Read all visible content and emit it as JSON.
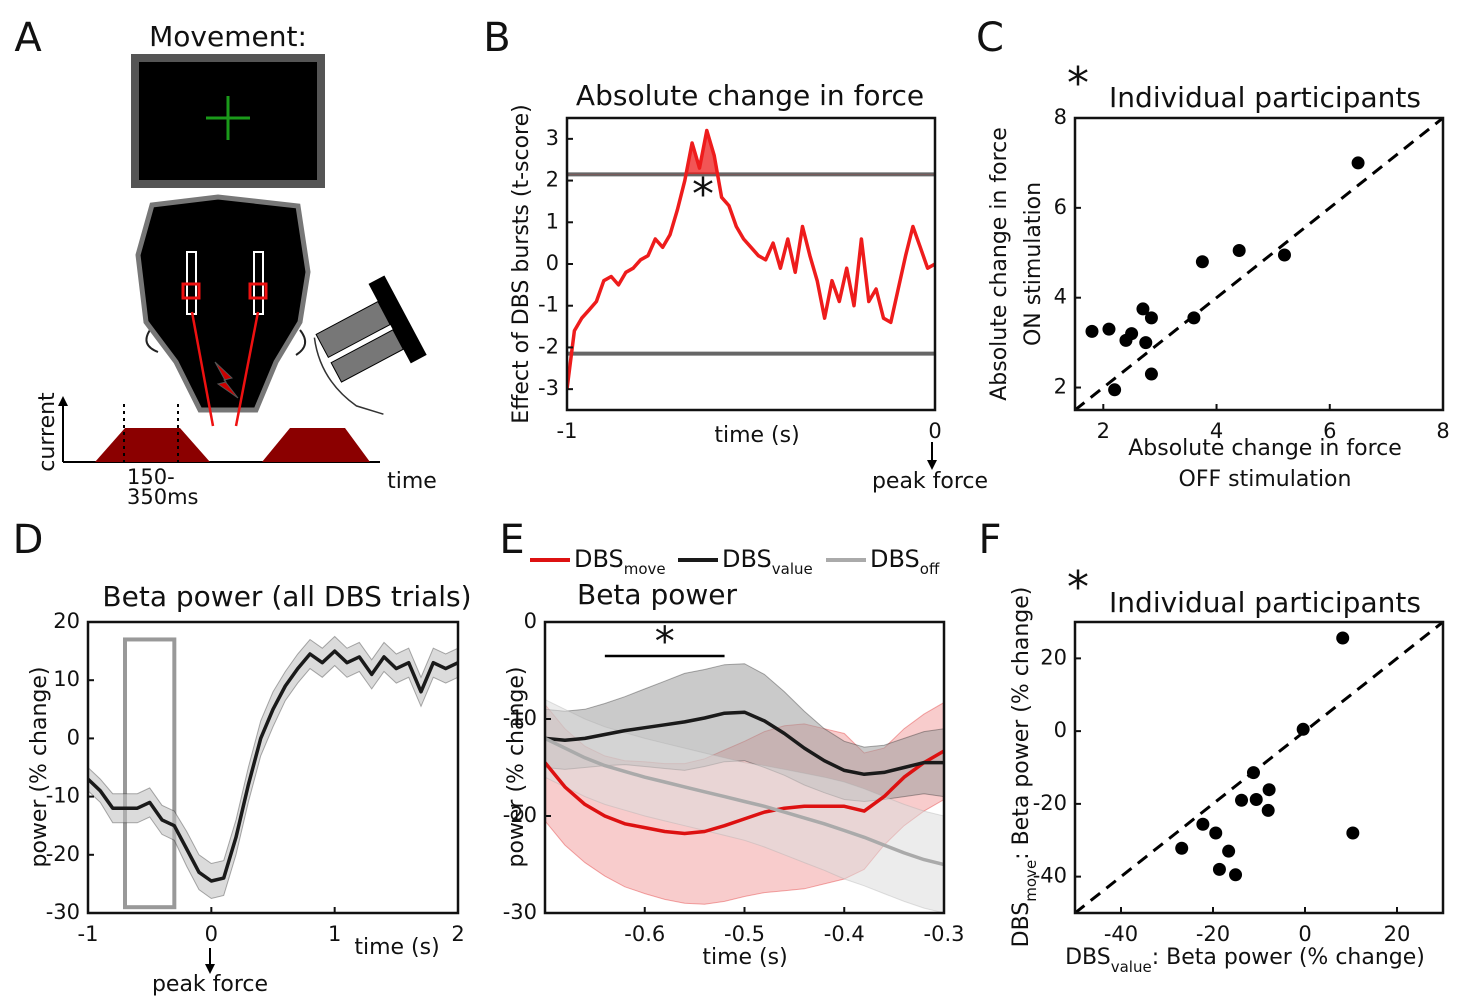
{
  "panel_labels": [
    "A",
    "B",
    "C",
    "D",
    "E",
    "F"
  ],
  "diagram": {
    "title": "Movement:",
    "y_axis_label": "current",
    "x_axis_label": "time",
    "interval": [
      "150-",
      "350ms"
    ]
  },
  "chart_data": [
    {
      "type": "line",
      "title": "Absolute change in force",
      "ylabel": "Effect of DBS bursts (t-score)",
      "xlabel": "time (s)",
      "annotation": "*",
      "x_annotation": "peak force",
      "xlim": [
        -1,
        0
      ],
      "ylim": [
        -3.5,
        3.5
      ],
      "xticks": [
        -1,
        0
      ],
      "yticks": [
        -3,
        -2,
        -1,
        0,
        1,
        2,
        3
      ],
      "thresholds": [
        2.15,
        -2.15
      ],
      "threshold_color": "#666666",
      "fill_above_threshold": true,
      "x": [
        -1.0,
        -0.98,
        -0.96,
        -0.94,
        -0.92,
        -0.9,
        -0.88,
        -0.86,
        -0.84,
        -0.82,
        -0.8,
        -0.78,
        -0.76,
        -0.74,
        -0.72,
        -0.7,
        -0.68,
        -0.66,
        -0.64,
        -0.62,
        -0.6,
        -0.58,
        -0.56,
        -0.54,
        -0.52,
        -0.5,
        -0.48,
        -0.46,
        -0.44,
        -0.42,
        -0.4,
        -0.38,
        -0.36,
        -0.34,
        -0.32,
        -0.3,
        -0.28,
        -0.26,
        -0.24,
        -0.22,
        -0.2,
        -0.18,
        -0.16,
        -0.14,
        -0.12,
        -0.1,
        -0.08,
        -0.06,
        -0.04,
        -0.02,
        0.0
      ],
      "series": [
        {
          "color": "#ee1c1c",
          "values": [
            -3.0,
            -1.6,
            -1.3,
            -1.1,
            -0.9,
            -0.4,
            -0.3,
            -0.5,
            -0.2,
            -0.1,
            0.1,
            0.2,
            0.6,
            0.4,
            0.7,
            1.3,
            2.0,
            2.9,
            2.3,
            3.2,
            2.6,
            1.6,
            1.4,
            0.9,
            0.6,
            0.4,
            0.2,
            0.1,
            0.5,
            -0.1,
            0.6,
            -0.2,
            0.9,
            0.2,
            -0.4,
            -1.3,
            -0.4,
            -0.9,
            -0.1,
            -1.0,
            0.6,
            -0.9,
            -0.6,
            -1.3,
            -1.4,
            -0.6,
            0.2,
            0.9,
            0.4,
            -0.1,
            0.0
          ]
        }
      ]
    },
    {
      "type": "scatter",
      "title": "Individual participants",
      "annotation": "*",
      "xlabel": [
        "Absolute change in force",
        "OFF stimulation"
      ],
      "ylabel": [
        "Absolute change in force",
        "ON stimulation"
      ],
      "xlim": [
        1.5,
        8
      ],
      "ylim": [
        1.5,
        8
      ],
      "xticks": [
        2,
        4,
        6,
        8
      ],
      "yticks": [
        2,
        4,
        6,
        8
      ],
      "identity_line": true,
      "color": "#000000",
      "x": [
        1.8,
        2.1,
        2.2,
        2.4,
        2.5,
        2.7,
        2.75,
        2.85,
        2.85,
        3.6,
        3.75,
        4.4,
        5.2,
        6.5
      ],
      "y": [
        3.25,
        3.3,
        1.95,
        3.05,
        3.2,
        3.75,
        3.0,
        3.55,
        2.3,
        3.55,
        4.8,
        5.05,
        4.95,
        7.0
      ]
    },
    {
      "type": "line",
      "title": "Beta power (all DBS trials)",
      "ylabel": "power (% change)",
      "xlabel": "time (s)",
      "x_annotation": "peak force",
      "xlim": [
        -1,
        2
      ],
      "ylim": [
        -30,
        20
      ],
      "xticks": [
        -1,
        0,
        1,
        2
      ],
      "yticks": [
        -30,
        -20,
        -10,
        0,
        10,
        20
      ],
      "highlight": {
        "x": [
          -0.7,
          -0.3
        ],
        "y": [
          -29,
          17
        ],
        "color": "#999999"
      },
      "x": [
        -1.0,
        -0.9,
        -0.8,
        -0.7,
        -0.6,
        -0.5,
        -0.4,
        -0.3,
        -0.2,
        -0.1,
        0.0,
        0.1,
        0.2,
        0.3,
        0.4,
        0.5,
        0.6,
        0.7,
        0.8,
        0.9,
        1.0,
        1.1,
        1.2,
        1.3,
        1.4,
        1.5,
        1.6,
        1.7,
        1.8,
        1.9,
        2.0
      ],
      "series": [
        {
          "color": "#1a1a1a",
          "band_color": "#bdbdbd",
          "values": [
            -7,
            -9,
            -12,
            -12,
            -12,
            -11,
            -14,
            -15,
            -19,
            -23,
            -24.5,
            -24,
            -17,
            -8,
            0,
            5,
            9,
            12,
            14.5,
            13,
            15,
            13,
            14,
            11,
            14,
            12,
            13,
            8,
            13,
            12,
            13
          ],
          "errors": [
            2,
            2,
            2.5,
            2.5,
            2.5,
            2.5,
            2.5,
            2.5,
            3,
            3,
            3,
            3,
            3,
            3,
            3,
            3,
            2.5,
            2.5,
            2.5,
            2.5,
            2.5,
            2.5,
            2.5,
            2.5,
            2.5,
            2.5,
            2.5,
            2.5,
            2.5,
            2.5,
            2.5
          ]
        }
      ]
    },
    {
      "type": "line",
      "title": "Beta power",
      "ylabel": "power (% change)",
      "xlabel": "time (s)",
      "legend": "top",
      "xlim": [
        -0.7,
        -0.3
      ],
      "ylim": [
        -30,
        0
      ],
      "xticks": [
        -0.6,
        -0.5,
        -0.4,
        -0.3
      ],
      "yticks": [
        -30,
        -20,
        -10,
        0
      ],
      "significance": {
        "x": [
          -0.64,
          -0.52
        ],
        "y": -3.5,
        "label": "*"
      },
      "x": [
        -0.7,
        -0.68,
        -0.66,
        -0.64,
        -0.62,
        -0.6,
        -0.58,
        -0.56,
        -0.54,
        -0.52,
        -0.5,
        -0.48,
        -0.46,
        -0.44,
        -0.42,
        -0.4,
        -0.38,
        -0.36,
        -0.34,
        -0.32,
        -0.3
      ],
      "series": [
        {
          "name": "DBS",
          "subscript": "move",
          "color": "#dd1111",
          "band_color": "#f2a3a3",
          "values": [
            -14.5,
            -17,
            -18.8,
            -20,
            -20.8,
            -21.2,
            -21.6,
            -21.8,
            -21.6,
            -21,
            -20.3,
            -19.6,
            -19.2,
            -19,
            -19,
            -19,
            -19.5,
            -18,
            -16,
            -14.5,
            -13.3
          ],
          "errors": [
            6,
            6,
            6,
            6.2,
            6.5,
            6.8,
            7,
            7.2,
            7.5,
            7.8,
            8,
            8.3,
            8.5,
            8.5,
            8,
            7.5,
            6,
            5,
            5,
            5,
            5
          ]
        },
        {
          "name": "DBS",
          "subscript": "value",
          "color": "#1a1a1a",
          "band_color": "#9e9e9e",
          "values": [
            -12,
            -12.2,
            -12,
            -11.6,
            -11.2,
            -10.9,
            -10.6,
            -10.3,
            -9.9,
            -9.4,
            -9.3,
            -10.2,
            -11.5,
            -13,
            -14.3,
            -15.3,
            -15.7,
            -15.5,
            -15,
            -14.5,
            -14.5
          ],
          "errors": [
            3,
            3,
            3,
            3.2,
            3.5,
            4,
            4.5,
            5,
            5,
            5,
            5,
            4.8,
            4.3,
            3.8,
            3.3,
            3,
            2.8,
            2.8,
            3,
            3.2,
            3.5
          ]
        },
        {
          "name": "DBS",
          "subscript": "off",
          "color": "#aaaaaa",
          "band_color": "#dddddd",
          "values": [
            -12,
            -13,
            -14,
            -14.8,
            -15.4,
            -16,
            -16.5,
            -17,
            -17.5,
            -18,
            -18.5,
            -19,
            -19.6,
            -20.2,
            -20.8,
            -21.5,
            -22.2,
            -23,
            -23.8,
            -24.5,
            -25
          ],
          "errors": [
            4,
            4,
            4,
            4,
            4,
            4,
            4,
            4,
            4,
            4,
            4,
            4.2,
            4.4,
            4.6,
            4.8,
            5,
            5,
            5,
            5,
            5,
            5
          ]
        }
      ]
    },
    {
      "type": "scatter",
      "title": "Individual participants",
      "annotation": "*",
      "xlabel": {
        "main": "DBS",
        "sub": "value",
        "rest": ": Beta power (% change)"
      },
      "ylabel": {
        "main": "DBS",
        "sub": "move",
        "rest": ": Beta power (% change)"
      },
      "xlim": [
        -50,
        30
      ],
      "ylim": [
        -50,
        30
      ],
      "xticks": [
        -40,
        -20,
        0,
        20
      ],
      "yticks": [
        -40,
        -20,
        0,
        20
      ],
      "identity_line": true,
      "color": "#000000",
      "x": [
        8.2,
        -0.4,
        -11.2,
        -13.8,
        -10.6,
        -7.8,
        -8.0,
        10.4,
        -22.2,
        -19.4,
        -16.6,
        -18.6,
        -15.1,
        -26.8
      ],
      "y": [
        25.6,
        0.5,
        -11.4,
        -19.0,
        -18.8,
        -16.1,
        -21.8,
        -28.0,
        -25.6,
        -28.0,
        -33.0,
        -38.0,
        -39.5,
        -32.2
      ]
    }
  ]
}
